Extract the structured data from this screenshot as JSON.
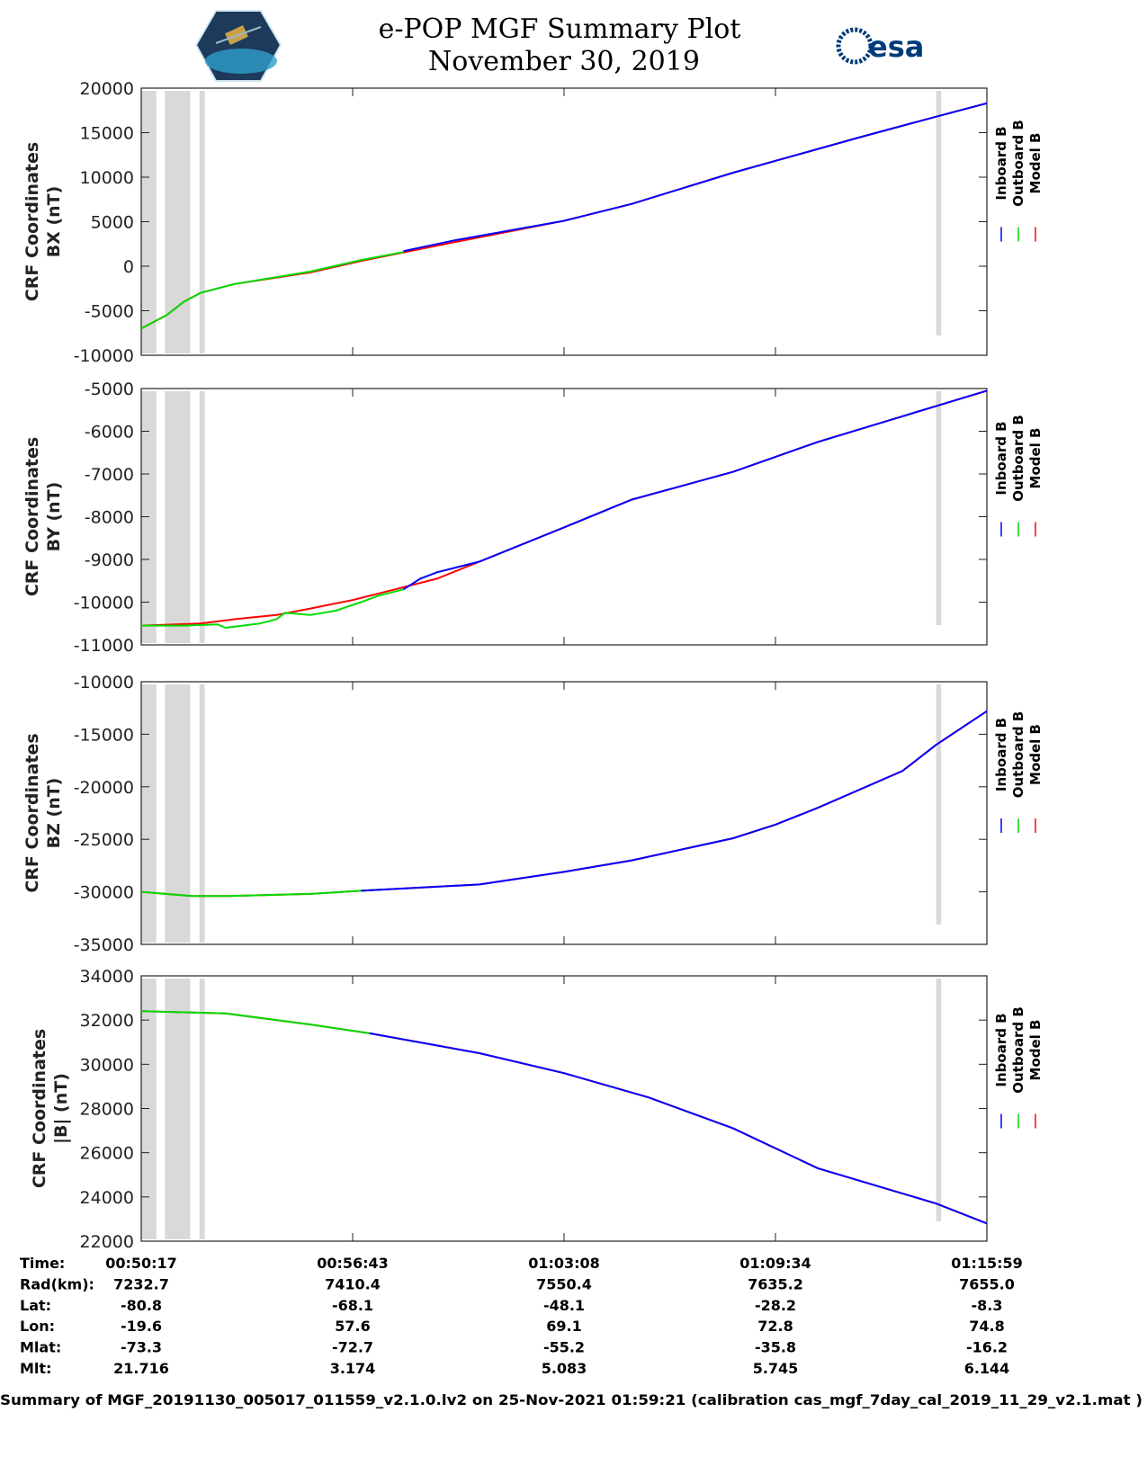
{
  "header": {
    "title": "e-POP MGF Summary Plot",
    "date": "November 30, 2019",
    "logo_left": "CASSIOPE",
    "logo_right": "esa"
  },
  "legend": [
    {
      "label": "Inboard B",
      "color": "#0000ff"
    },
    {
      "label": "Outboard B",
      "color": "#00dd00"
    },
    {
      "label": "Model B",
      "color": "#ff0000"
    }
  ],
  "colors": {
    "shade": "#d9d9d9",
    "inboard": "#0000ff",
    "outboard": "#00dd00",
    "model": "#ff0000"
  },
  "chart_data": [
    {
      "type": "line",
      "ylabel": [
        "CRF Coordinates",
        "BX (nT)"
      ],
      "ylim": [
        -10000,
        20000
      ],
      "yticks": [
        -10000,
        -5000,
        0,
        5000,
        10000,
        15000,
        20000
      ],
      "x_units": "minutes after 00:50:17",
      "xlim": [
        0,
        25.7
      ],
      "shaded_intervals": [
        [
          0,
          0.46
        ],
        [
          0.72,
          1.49
        ],
        [
          1.77,
          1.93
        ],
        [
          24.16,
          24.31
        ]
      ],
      "series": [
        {
          "name": "Model B",
          "x": [
            0,
            0.77,
            1.29,
            1.8,
            2.83,
            5.14,
            6.68,
            9.51,
            12.85,
            14.91,
            17.99,
            21.85,
            24.16,
            25.7
          ],
          "y": [
            -7000,
            -5500,
            -4000,
            -3000,
            -2000,
            -700,
            600,
            2700,
            5100,
            7000,
            10500,
            14500,
            16800,
            18300
          ]
        },
        {
          "name": "Outboard B",
          "x": [
            0,
            0.77,
            1.29,
            1.8,
            2.83,
            5.14,
            6.68,
            7.97
          ],
          "y": [
            -7000,
            -5500,
            -4000,
            -3000,
            -2000,
            -600,
            700,
            1600
          ]
        },
        {
          "name": "Inboard B",
          "x": [
            7.97,
            9.51,
            12.85,
            14.91,
            17.99,
            21.85,
            24.16,
            25.7
          ],
          "y": [
            1700,
            2900,
            5100,
            7000,
            10500,
            14500,
            16800,
            18300
          ]
        }
      ]
    },
    {
      "type": "line",
      "ylabel": [
        "CRF Coordinates",
        "BY (nT)"
      ],
      "ylim": [
        -11000,
        -5000
      ],
      "yticks": [
        -11000,
        -10000,
        -9000,
        -8000,
        -7000,
        -6000,
        -5000
      ],
      "x_units": "minutes after 00:50:17",
      "xlim": [
        0,
        25.7
      ],
      "shaded_intervals": [
        [
          0,
          0.46
        ],
        [
          0.72,
          1.49
        ],
        [
          1.77,
          1.93
        ],
        [
          24.16,
          24.31
        ]
      ],
      "series": [
        {
          "name": "Model B",
          "x": [
            0,
            1.8,
            2.83,
            4.11,
            5.14,
            6.43,
            7.71,
            8.99,
            10.28,
            12.85,
            14.91,
            17.99,
            20.56,
            23.13,
            25.7
          ],
          "y": [
            -10550,
            -10500,
            -10400,
            -10300,
            -10150,
            -9950,
            -9700,
            -9450,
            -9050,
            -8250,
            -7600,
            -6950,
            -6250,
            -5650,
            -5050
          ]
        },
        {
          "name": "Outboard B",
          "x": [
            0,
            1.29,
            2.31,
            2.57,
            3.6,
            4.11,
            4.37,
            5.14,
            5.91,
            6.68,
            7.2,
            7.97
          ],
          "y": [
            -10550,
            -10550,
            -10520,
            -10600,
            -10500,
            -10400,
            -10250,
            -10300,
            -10200,
            -10000,
            -9850,
            -9700
          ]
        },
        {
          "name": "Inboard B",
          "x": [
            7.97,
            8.48,
            8.99,
            9.51,
            10.28,
            12.85,
            14.91,
            17.99,
            20.56,
            23.13,
            25.7
          ],
          "y": [
            -9700,
            -9450,
            -9300,
            -9200,
            -9050,
            -8250,
            -7600,
            -6950,
            -6250,
            -5650,
            -5050
          ]
        }
      ]
    },
    {
      "type": "line",
      "ylabel": [
        "CRF Coordinates",
        "BZ (nT)"
      ],
      "ylim": [
        -35000,
        -10000
      ],
      "yticks": [
        -35000,
        -30000,
        -25000,
        -20000,
        -15000,
        -10000
      ],
      "x_units": "minutes after 00:50:17",
      "xlim": [
        0,
        25.7
      ],
      "shaded_intervals": [
        [
          0,
          0.46
        ],
        [
          0.72,
          1.49
        ],
        [
          1.77,
          1.93
        ],
        [
          24.16,
          24.31
        ]
      ],
      "series": [
        {
          "name": "Model B",
          "x": [
            0,
            1.54,
            2.57,
            5.14,
            6.68,
            10.28,
            12.85,
            14.91,
            17.99,
            19.28,
            20.56,
            23.13,
            24.16,
            25.7
          ],
          "y": [
            -30000,
            -30400,
            -30400,
            -30200,
            -29900,
            -29300,
            -28100,
            -27000,
            -24900,
            -23600,
            -22000,
            -18500,
            -16000,
            -12800
          ]
        },
        {
          "name": "Outboard B",
          "x": [
            0,
            1.54,
            2.57,
            5.14,
            6.68,
            7.2
          ],
          "y": [
            -30000,
            -30400,
            -30400,
            -30200,
            -29900,
            -29800
          ]
        },
        {
          "name": "Inboard B",
          "x": [
            6.68,
            10.28,
            12.85,
            14.91,
            17.99,
            19.28,
            20.56,
            23.13,
            24.16,
            25.7
          ],
          "y": [
            -29900,
            -29300,
            -28100,
            -27000,
            -24900,
            -23600,
            -22000,
            -18500,
            -16000,
            -12800
          ]
        }
      ]
    },
    {
      "type": "line",
      "ylabel": [
        "CRF Coordinates",
        "|B| (nT)"
      ],
      "ylim": [
        22000,
        34000
      ],
      "yticks": [
        22000,
        24000,
        26000,
        28000,
        30000,
        32000,
        34000
      ],
      "x_units": "minutes after 00:50:17",
      "xlim": [
        0,
        25.7
      ],
      "shaded_intervals": [
        [
          0,
          0.46
        ],
        [
          0.72,
          1.49
        ],
        [
          1.77,
          1.93
        ],
        [
          24.16,
          24.31
        ]
      ],
      "series": [
        {
          "name": "Model B",
          "x": [
            0,
            2.57,
            5.14,
            6.94,
            10.28,
            12.85,
            15.42,
            17.99,
            20.56,
            24.16,
            25.7
          ],
          "y": [
            32400,
            32300,
            31800,
            31400,
            30500,
            29600,
            28500,
            27100,
            25300,
            23700,
            22800
          ]
        },
        {
          "name": "Outboard B",
          "x": [
            0,
            2.57,
            5.14,
            6.94
          ],
          "y": [
            32400,
            32300,
            31800,
            31400
          ]
        },
        {
          "name": "Inboard B",
          "x": [
            6.94,
            10.28,
            12.85,
            15.42,
            17.99,
            20.56,
            24.16,
            25.7
          ],
          "y": [
            31400,
            30500,
            29600,
            28500,
            27100,
            25300,
            23700,
            22800
          ]
        }
      ]
    }
  ],
  "table": {
    "rows": [
      {
        "label": "Time:",
        "values": [
          "00:50:17",
          "00:56:43",
          "01:03:08",
          "01:09:34",
          "01:15:59"
        ]
      },
      {
        "label": "Rad(km):",
        "values": [
          "7232.7",
          "7410.4",
          "7550.4",
          "7635.2",
          "7655.0"
        ]
      },
      {
        "label": "Lat:",
        "values": [
          "-80.8",
          "-68.1",
          "-48.1",
          "-28.2",
          "-8.3"
        ]
      },
      {
        "label": "Lon:",
        "values": [
          "-19.6",
          "57.6",
          "69.1",
          "72.8",
          "74.8"
        ]
      },
      {
        "label": "Mlat:",
        "values": [
          "-73.3",
          "-72.7",
          "-55.2",
          "-35.8",
          "-16.2"
        ]
      },
      {
        "label": "Mlt:",
        "values": [
          "21.716",
          "3.174",
          "5.083",
          "5.745",
          "6.144"
        ]
      }
    ]
  },
  "footer": "Summary of MGF_20191130_005017_011559_v2.1.0.lv2 on 25-Nov-2021 01:59:21 (calibration cas_mgf_7day_cal_2019_11_29_v2.1.mat )"
}
